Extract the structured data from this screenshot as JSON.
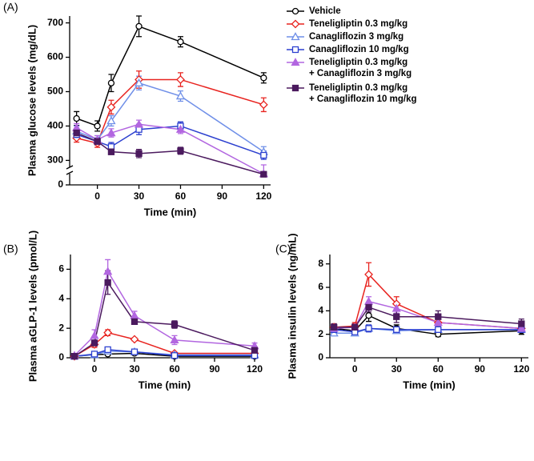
{
  "chart_data": [
    {
      "type": "line",
      "panel_label": "(A)",
      "x_label": "Time (min)",
      "y_label": "Plasma glucose levels (mg/dL)",
      "xlim": [
        -20,
        125
      ],
      "xticks": [
        0,
        30,
        60,
        90,
        120
      ],
      "ylim": [
        0,
        720
      ],
      "yticks": [
        0,
        300,
        400,
        500,
        600,
        700
      ],
      "y_break": 280,
      "legend": "right",
      "x": [
        -15,
        0,
        10,
        30,
        60,
        120
      ],
      "series": [
        {
          "name": "Vehicle",
          "color": "#000000",
          "marker": "circle",
          "filled": false,
          "values": [
            422,
            400,
            525,
            690,
            645,
            540
          ],
          "errors": [
            20,
            15,
            25,
            30,
            15,
            15
          ]
        },
        {
          "name": "Teneligliptin 0.3 mg/kg",
          "color": "#e8231f",
          "marker": "diamond",
          "filled": false,
          "values": [
            365,
            350,
            455,
            535,
            535,
            462
          ],
          "errors": [
            12,
            12,
            20,
            25,
            20,
            20
          ]
        },
        {
          "name": "Canagliflozin 3 mg/kg",
          "color": "#6f8fe8",
          "marker": "triangle",
          "filled": false,
          "values": [
            385,
            360,
            415,
            525,
            487,
            325
          ],
          "errors": [
            15,
            12,
            15,
            20,
            15,
            15
          ]
        },
        {
          "name": "Canagliflozin 10 mg/kg",
          "color": "#2b3fcf",
          "marker": "square",
          "filled": false,
          "values": [
            375,
            355,
            340,
            390,
            400,
            315
          ],
          "errors": [
            12,
            10,
            12,
            15,
            12,
            12
          ]
        },
        {
          "name": "Teneligliptin 0.3 mg/kg\n+ Canagliflozin 3 mg/kg",
          "color": "#b266e0",
          "marker": "triangle",
          "filled": true,
          "values": [
            395,
            360,
            380,
            405,
            390,
            275
          ],
          "errors": [
            12,
            12,
            12,
            12,
            12,
            12
          ]
        },
        {
          "name": "Teneligliptin 0.3 mg/kg\n+ Canagliflozin 10 mg/kg",
          "color": "#4b1a5e",
          "marker": "square",
          "filled": true,
          "values": [
            380,
            355,
            325,
            320,
            328,
            265
          ],
          "errors": [
            10,
            10,
            8,
            12,
            10,
            8
          ]
        }
      ]
    },
    {
      "type": "line",
      "panel_label": "(B)",
      "x_label": "Time (min)",
      "y_label": "Plasma aGLP-1 levels (pmol/L)",
      "xlim": [
        -18,
        123
      ],
      "xticks": [
        0,
        30,
        60,
        90,
        120
      ],
      "ylim": [
        0,
        7
      ],
      "yticks": [
        0,
        2,
        4,
        6
      ],
      "x": [
        -15,
        0,
        10,
        30,
        60,
        120
      ],
      "series": [
        {
          "color": "#000000",
          "marker": "circle",
          "filled": false,
          "values": [
            0.1,
            0.2,
            0.25,
            0.3,
            0.1,
            0.1
          ],
          "errors": [
            0.05,
            0.05,
            0.08,
            0.1,
            0.05,
            0.05
          ]
        },
        {
          "color": "#e8231f",
          "marker": "diamond",
          "filled": false,
          "values": [
            0.1,
            0.9,
            1.7,
            1.25,
            0.3,
            0.3
          ],
          "errors": [
            0.05,
            0.2,
            0.2,
            0.1,
            0.05,
            0.1
          ]
        },
        {
          "color": "#6f8fe8",
          "marker": "triangle",
          "filled": false,
          "values": [
            0.1,
            0.2,
            0.45,
            0.4,
            0.2,
            0.2
          ],
          "errors": [
            0.05,
            0.05,
            0.1,
            0.15,
            0.05,
            0.05
          ]
        },
        {
          "color": "#2b3fcf",
          "marker": "square",
          "filled": false,
          "values": [
            0.1,
            0.25,
            0.55,
            0.4,
            0.15,
            0.15
          ],
          "errors": [
            0.05,
            0.1,
            0.1,
            0.15,
            0.05,
            0.05
          ]
        },
        {
          "color": "#b266e0",
          "marker": "triangle",
          "filled": true,
          "values": [
            0.15,
            1.5,
            5.85,
            2.85,
            1.2,
            0.8
          ],
          "errors": [
            0.05,
            0.4,
            0.8,
            0.3,
            0.3,
            0.2
          ]
        },
        {
          "color": "#4b1a5e",
          "marker": "square",
          "filled": true,
          "values": [
            0.1,
            1.0,
            5.1,
            2.45,
            2.25,
            0.5
          ],
          "errors": [
            0.05,
            0.2,
            0.8,
            0.15,
            0.25,
            0.1
          ]
        }
      ]
    },
    {
      "type": "line",
      "panel_label": "(C)",
      "x_label": "Time (min)",
      "y_label": "Plasma insulin levels (ng/mL)",
      "xlim": [
        -18,
        125
      ],
      "xticks": [
        0,
        30,
        60,
        90,
        120
      ],
      "ylim": [
        0,
        8.8
      ],
      "yticks": [
        0,
        2,
        4,
        6,
        8
      ],
      "x": [
        -15,
        0,
        10,
        30,
        60,
        120
      ],
      "series": [
        {
          "color": "#000000",
          "marker": "circle",
          "filled": false,
          "values": [
            2.5,
            2.3,
            3.6,
            2.5,
            2.0,
            2.3
          ],
          "errors": [
            0.3,
            0.2,
            0.5,
            0.3,
            0.2,
            0.3
          ]
        },
        {
          "color": "#e8231f",
          "marker": "diamond",
          "filled": false,
          "values": [
            2.6,
            2.7,
            7.1,
            4.6,
            3.0,
            2.5
          ],
          "errors": [
            0.3,
            0.3,
            1.0,
            0.6,
            0.3,
            0.3
          ]
        },
        {
          "color": "#6f8fe8",
          "marker": "triangle",
          "filled": false,
          "values": [
            2.1,
            2.1,
            2.5,
            2.3,
            2.4,
            2.4
          ],
          "errors": [
            0.2,
            0.2,
            0.2,
            0.2,
            0.2,
            0.2
          ]
        },
        {
          "color": "#2b3fcf",
          "marker": "square",
          "filled": false,
          "values": [
            2.4,
            2.2,
            2.5,
            2.4,
            2.4,
            2.4
          ],
          "errors": [
            0.3,
            0.2,
            0.3,
            0.2,
            0.2,
            0.2
          ]
        },
        {
          "color": "#b266e0",
          "marker": "triangle",
          "filled": true,
          "values": [
            2.5,
            2.6,
            4.8,
            4.2,
            3.0,
            2.5
          ],
          "errors": [
            0.3,
            0.3,
            0.4,
            0.4,
            0.3,
            0.3
          ]
        },
        {
          "color": "#4b1a5e",
          "marker": "square",
          "filled": true,
          "values": [
            2.6,
            2.6,
            4.3,
            3.5,
            3.5,
            2.9
          ],
          "errors": [
            0.3,
            0.3,
            0.4,
            0.5,
            0.5,
            0.4
          ]
        }
      ]
    }
  ]
}
